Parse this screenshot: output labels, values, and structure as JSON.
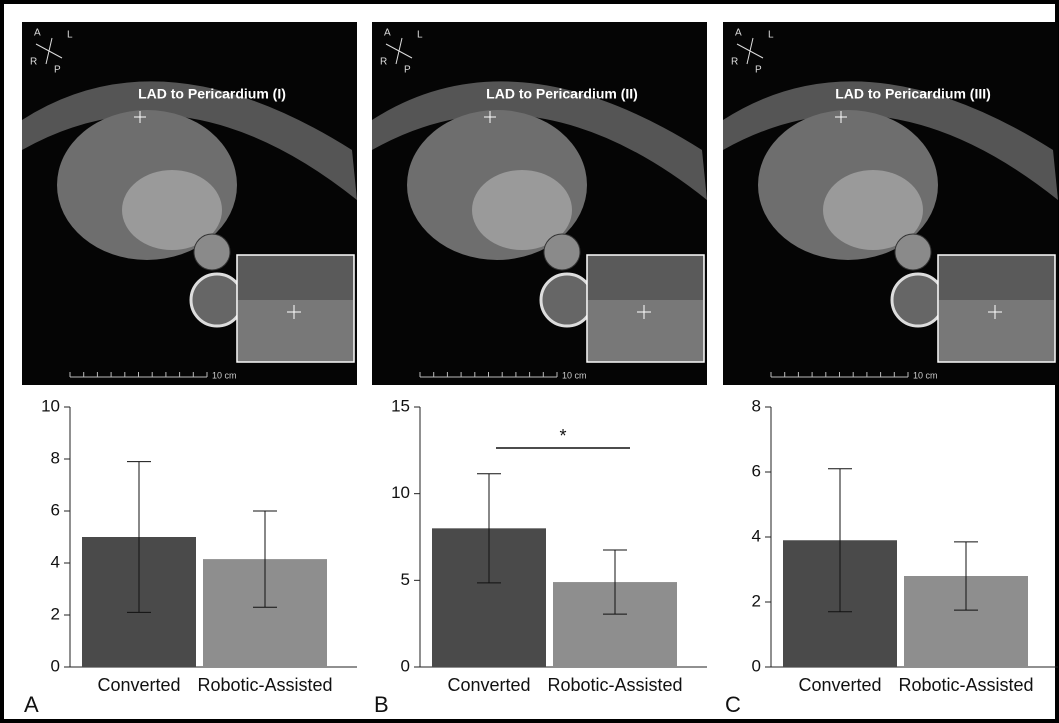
{
  "chart_data": [
    {
      "type": "bar",
      "image_title": "LAD to Pericardium (I)",
      "orientation": [
        "A",
        "L",
        "R",
        "P"
      ],
      "scale_label": "10 cm",
      "panel_label": "A",
      "categories": [
        "Converted",
        "Robotic-Assisted"
      ],
      "values": [
        5.0,
        4.15
      ],
      "errors": [
        2.9,
        1.85
      ],
      "colors": [
        "#4a4a4a",
        "#8e8e8e"
      ],
      "ylim": [
        0,
        10
      ],
      "yticks": [
        0,
        2,
        4,
        6,
        8,
        10
      ]
    },
    {
      "type": "bar",
      "image_title": "LAD to Pericardium (II)",
      "orientation": [
        "A",
        "L",
        "R",
        "P"
      ],
      "scale_label": "10 cm",
      "panel_label": "B",
      "categories": [
        "Converted",
        "Robotic-Assisted"
      ],
      "values": [
        8.0,
        4.9
      ],
      "errors": [
        3.15,
        1.85
      ],
      "colors": [
        "#4a4a4a",
        "#8e8e8e"
      ],
      "ylim": [
        0,
        15
      ],
      "yticks": [
        0,
        5,
        10,
        15
      ],
      "annotation": "*"
    },
    {
      "type": "bar",
      "image_title": "LAD to Pericardium (III)",
      "orientation": [
        "A",
        "L",
        "R",
        "P"
      ],
      "scale_label": "10 cm",
      "panel_label": "C",
      "categories": [
        "Converted",
        "Robotic-Assisted"
      ],
      "values": [
        3.9,
        2.8
      ],
      "errors": [
        2.2,
        1.05
      ],
      "colors": [
        "#4a4a4a",
        "#8e8e8e"
      ],
      "ylim": [
        0,
        8
      ],
      "yticks": [
        0,
        2,
        4,
        6,
        8
      ]
    }
  ]
}
